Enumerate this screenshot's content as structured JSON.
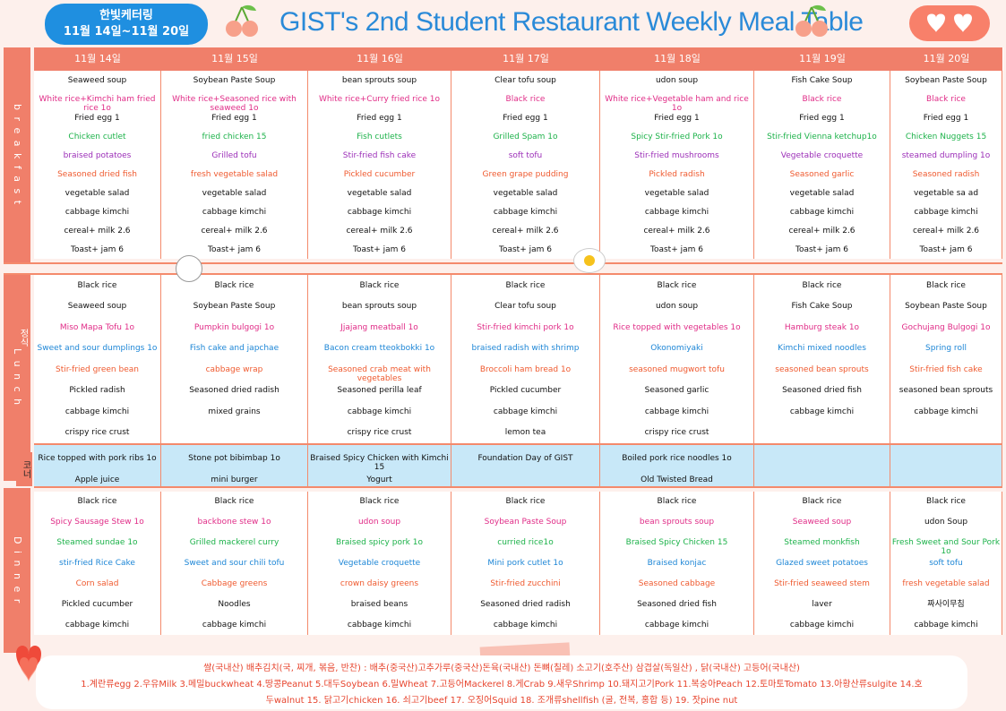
{
  "header": {
    "brand_line1": "한빛케터링",
    "brand_line2": "11월 14일~11월 20일",
    "title": "GIST's 2nd Student Restaurant Weekly Meal Table"
  },
  "days": [
    "11월 14일",
    "11월 15일",
    "11월 16일",
    "11월 17일",
    "11월 18일",
    "11월 19일",
    "11월 20일"
  ],
  "sections": {
    "breakfast": "b r e a k f a s t",
    "lunch": "L u n c h",
    "lunch_sub": "정식",
    "corner": "코너",
    "dinner": "D i n n e r"
  },
  "breakfast": [
    [
      {
        "t": "Seaweed soup",
        "c": "black"
      },
      {
        "t": "White rice+Kimchi ham fried rice 1o",
        "c": "pink"
      },
      {
        "t": "Fried egg 1",
        "c": "black"
      },
      {
        "t": "Chicken cutlet",
        "c": "green"
      },
      {
        "t": "braised potatoes",
        "c": "purple"
      },
      {
        "t": "Seasoned dried fish",
        "c": "orange"
      },
      {
        "t": "vegetable salad",
        "c": "black"
      },
      {
        "t": "cabbage kimchi",
        "c": "black"
      },
      {
        "t": "cereal+ milk 2.6",
        "c": "black"
      },
      {
        "t": "Toast+ jam 6",
        "c": "black"
      }
    ],
    [
      {
        "t": "Soybean Paste Soup",
        "c": "black"
      },
      {
        "t": "White rice+Seasoned rice with seaweed 1o",
        "c": "pink"
      },
      {
        "t": "Fried egg 1",
        "c": "black"
      },
      {
        "t": "fried chicken 15",
        "c": "green"
      },
      {
        "t": "Grilled tofu",
        "c": "purple"
      },
      {
        "t": "fresh vegetable salad",
        "c": "orange"
      },
      {
        "t": "vegetable salad",
        "c": "black"
      },
      {
        "t": "cabbage kimchi",
        "c": "black"
      },
      {
        "t": "cereal+ milk 2.6",
        "c": "black"
      },
      {
        "t": "Toast+ jam 6",
        "c": "black"
      }
    ],
    [
      {
        "t": "bean sprouts soup",
        "c": "black"
      },
      {
        "t": "White rice+Curry fried rice 1o",
        "c": "pink"
      },
      {
        "t": "Fried egg 1",
        "c": "black"
      },
      {
        "t": "Fish cutlets",
        "c": "green"
      },
      {
        "t": "Stir-fried fish cake",
        "c": "purple"
      },
      {
        "t": "Pickled cucumber",
        "c": "orange"
      },
      {
        "t": "vegetable salad",
        "c": "black"
      },
      {
        "t": "cabbage kimchi",
        "c": "black"
      },
      {
        "t": "cereal+ milk 2.6",
        "c": "black"
      },
      {
        "t": "Toast+ jam 6",
        "c": "black"
      }
    ],
    [
      {
        "t": "Clear tofu soup",
        "c": "black"
      },
      {
        "t": "Black rice",
        "c": "pink"
      },
      {
        "t": "Fried egg 1",
        "c": "black"
      },
      {
        "t": "Grilled Spam 1o",
        "c": "green"
      },
      {
        "t": "soft tofu",
        "c": "purple"
      },
      {
        "t": "Green grape pudding",
        "c": "orange"
      },
      {
        "t": "vegetable salad",
        "c": "black"
      },
      {
        "t": "cabbage kimchi",
        "c": "black"
      },
      {
        "t": "cereal+ milk 2.6",
        "c": "black"
      },
      {
        "t": "Toast+ jam 6",
        "c": "black"
      }
    ],
    [
      {
        "t": "udon soup",
        "c": "black"
      },
      {
        "t": "White rice+Vegetable ham and rice 1o",
        "c": "pink"
      },
      {
        "t": "Fried egg 1",
        "c": "black"
      },
      {
        "t": "Spicy Stir-fried Pork 1o",
        "c": "green"
      },
      {
        "t": "Stir-fried mushrooms",
        "c": "purple"
      },
      {
        "t": "Pickled radish",
        "c": "orange"
      },
      {
        "t": "vegetable salad",
        "c": "black"
      },
      {
        "t": "cabbage kimchi",
        "c": "black"
      },
      {
        "t": "cereal+ milk 2.6",
        "c": "black"
      },
      {
        "t": "Toast+ jam 6",
        "c": "black"
      }
    ],
    [
      {
        "t": "Fish Cake Soup",
        "c": "black"
      },
      {
        "t": "Black rice",
        "c": "pink"
      },
      {
        "t": "Fried egg 1",
        "c": "black"
      },
      {
        "t": "Stir-fried Vienna ketchup1o",
        "c": "green"
      },
      {
        "t": "Vegetable croquette",
        "c": "purple"
      },
      {
        "t": "Seasoned garlic",
        "c": "orange"
      },
      {
        "t": "vegetable salad",
        "c": "black"
      },
      {
        "t": "cabbage kimchi",
        "c": "black"
      },
      {
        "t": "cereal+ milk 2.6",
        "c": "black"
      },
      {
        "t": "Toast+ jam 6",
        "c": "black"
      }
    ],
    [
      {
        "t": "Soybean Paste Soup",
        "c": "black"
      },
      {
        "t": "Black rice",
        "c": "pink"
      },
      {
        "t": "Fried egg 1",
        "c": "black"
      },
      {
        "t": "Chicken Nuggets 15",
        "c": "green"
      },
      {
        "t": "steamed dumpling 1o",
        "c": "purple"
      },
      {
        "t": "Seasoned radish",
        "c": "orange"
      },
      {
        "t": "vegetable sa ad",
        "c": "black"
      },
      {
        "t": "cabbage kimchi",
        "c": "black"
      },
      {
        "t": "cereal+ milk 2.6",
        "c": "black"
      },
      {
        "t": "Toast+ jam 6",
        "c": "black"
      }
    ]
  ],
  "lunch": [
    [
      {
        "t": "Black rice",
        "c": "black"
      },
      {
        "t": "Seaweed soup",
        "c": "black"
      },
      {
        "t": "Miso Mapa Tofu 1o",
        "c": "pink"
      },
      {
        "t": "Sweet and sour dumplings  1o",
        "c": "blue"
      },
      {
        "t": "Stir-fried green bean",
        "c": "orange"
      },
      {
        "t": "Pickled radish",
        "c": "black"
      },
      {
        "t": "cabbage kimchi",
        "c": "black"
      },
      {
        "t": "crispy rice crust",
        "c": "black"
      }
    ],
    [
      {
        "t": "Black rice",
        "c": "black"
      },
      {
        "t": "Soybean Paste Soup",
        "c": "black"
      },
      {
        "t": "Pumpkin bulgogi 1o",
        "c": "pink"
      },
      {
        "t": "Fish cake and japchae",
        "c": "blue"
      },
      {
        "t": "cabbage wrap",
        "c": "orange"
      },
      {
        "t": "Seasoned dried radish",
        "c": "black"
      },
      {
        "t": "mixed grains",
        "c": "black"
      },
      {
        "t": "",
        "c": "black"
      }
    ],
    [
      {
        "t": "Black rice",
        "c": "black"
      },
      {
        "t": "bean sprouts soup",
        "c": "black"
      },
      {
        "t": "Jjajang meatball 1o",
        "c": "pink"
      },
      {
        "t": "Bacon cream tteokbokki 1o",
        "c": "blue"
      },
      {
        "t": "Seasoned crab meat with vegetables",
        "c": "orange"
      },
      {
        "t": "Seasoned perilla leaf",
        "c": "black"
      },
      {
        "t": "cabbage kimchi",
        "c": "black"
      },
      {
        "t": "crispy rice crust",
        "c": "black"
      }
    ],
    [
      {
        "t": "Black rice",
        "c": "black"
      },
      {
        "t": "Clear tofu soup",
        "c": "black"
      },
      {
        "t": "Stir-fried kimchi pork 1o",
        "c": "pink"
      },
      {
        "t": "braised radish with shrimp",
        "c": "blue"
      },
      {
        "t": "Broccoli ham bread 1o",
        "c": "orange"
      },
      {
        "t": "Pickled cucumber",
        "c": "black"
      },
      {
        "t": "cabbage kimchi",
        "c": "black"
      },
      {
        "t": "lemon tea",
        "c": "black"
      }
    ],
    [
      {
        "t": "Black rice",
        "c": "black"
      },
      {
        "t": "udon soup",
        "c": "black"
      },
      {
        "t": "Rice topped with vegetables 1o",
        "c": "pink"
      },
      {
        "t": "Okonomiyaki",
        "c": "blue"
      },
      {
        "t": "seasoned mugwort tofu",
        "c": "orange"
      },
      {
        "t": "Seasoned garlic",
        "c": "black"
      },
      {
        "t": "cabbage kimchi",
        "c": "black"
      },
      {
        "t": "crispy rice crust",
        "c": "black"
      }
    ],
    [
      {
        "t": "Black rice",
        "c": "black"
      },
      {
        "t": "Fish Cake Soup",
        "c": "black"
      },
      {
        "t": "Hamburg steak 1o",
        "c": "pink"
      },
      {
        "t": "Kimchi mixed noodles",
        "c": "blue"
      },
      {
        "t": "seasoned bean sprouts",
        "c": "orange"
      },
      {
        "t": "Seasoned dried fish",
        "c": "black"
      },
      {
        "t": "cabbage kimchi",
        "c": "black"
      },
      {
        "t": "",
        "c": "black"
      }
    ],
    [
      {
        "t": "Black rice",
        "c": "black"
      },
      {
        "t": "Soybean Paste Soup",
        "c": "black"
      },
      {
        "t": "Gochujang Bulgogi 1o",
        "c": "pink"
      },
      {
        "t": "Spring roll",
        "c": "blue"
      },
      {
        "t": "Stir-fried fish cake",
        "c": "orange"
      },
      {
        "t": "seasoned bean sprouts",
        "c": "black"
      },
      {
        "t": "cabbage kimchi",
        "c": "black"
      },
      {
        "t": "",
        "c": "black"
      }
    ]
  ],
  "corner": [
    [
      "Rice topped with pork ribs 1o",
      "Apple juice"
    ],
    [
      "Stone pot bibimbap 1o",
      "mini burger"
    ],
    [
      "Braised Spicy Chicken with Kimchi 15",
      "Yogurt"
    ],
    [
      "Foundation Day of GIST",
      ""
    ],
    [
      "Boiled pork rice noodles 1o",
      "Old Twisted Bread"
    ],
    [
      "",
      ""
    ],
    [
      "",
      ""
    ]
  ],
  "dinner": [
    [
      {
        "t": "Black rice",
        "c": "black"
      },
      {
        "t": "Spicy Sausage Stew 1o",
        "c": "pink"
      },
      {
        "t": "Steamed sundae 1o",
        "c": "green"
      },
      {
        "t": "stir-fried Rice Cake",
        "c": "blue"
      },
      {
        "t": "Corn salad",
        "c": "orange"
      },
      {
        "t": "Pickled cucumber",
        "c": "black"
      },
      {
        "t": "cabbage kimchi",
        "c": "black"
      }
    ],
    [
      {
        "t": "Black rice",
        "c": "black"
      },
      {
        "t": "backbone stew 1o",
        "c": "pink"
      },
      {
        "t": "Grilled mackerel curry",
        "c": "green"
      },
      {
        "t": "Sweet and sour chili tofu",
        "c": "blue"
      },
      {
        "t": "Cabbage greens",
        "c": "orange"
      },
      {
        "t": "Noodles",
        "c": "black"
      },
      {
        "t": "cabbage kimchi",
        "c": "black"
      }
    ],
    [
      {
        "t": "Black rice",
        "c": "black"
      },
      {
        "t": "udon soup",
        "c": "pink"
      },
      {
        "t": "Braised spicy pork 1o",
        "c": "green"
      },
      {
        "t": "Vegetable croquette",
        "c": "blue"
      },
      {
        "t": "crown daisy  greens",
        "c": "orange"
      },
      {
        "t": "braised beans",
        "c": "black"
      },
      {
        "t": "cabbage kimchi",
        "c": "black"
      }
    ],
    [
      {
        "t": "Black rice",
        "c": "black"
      },
      {
        "t": "Soybean Paste Soup",
        "c": "pink"
      },
      {
        "t": "curried rice1o",
        "c": "green"
      },
      {
        "t": "Mini pork cutlet 1o",
        "c": "blue"
      },
      {
        "t": "Stir-fried zucchini",
        "c": "orange"
      },
      {
        "t": "Seasoned dried radish",
        "c": "black"
      },
      {
        "t": "cabbage kimchi",
        "c": "black"
      }
    ],
    [
      {
        "t": "Black rice",
        "c": "black"
      },
      {
        "t": "bean sprouts soup",
        "c": "pink"
      },
      {
        "t": "Braised Spicy Chicken 15",
        "c": "green"
      },
      {
        "t": "Braised konjac",
        "c": "blue"
      },
      {
        "t": "Seasoned cabbage",
        "c": "orange"
      },
      {
        "t": "Seasoned dried fish",
        "c": "black"
      },
      {
        "t": "cabbage kimchi",
        "c": "black"
      }
    ],
    [
      {
        "t": "Black rice",
        "c": "black"
      },
      {
        "t": "Seaweed soup",
        "c": "pink"
      },
      {
        "t": "Steamed monkfish",
        "c": "green"
      },
      {
        "t": "Glazed sweet potatoes",
        "c": "blue"
      },
      {
        "t": "Stir-fried seaweed stem",
        "c": "orange"
      },
      {
        "t": "laver",
        "c": "black"
      },
      {
        "t": "cabbage kimchi",
        "c": "black"
      }
    ],
    [
      {
        "t": "Black rice",
        "c": "black"
      },
      {
        "t": "udon Soup",
        "c": "black"
      },
      {
        "t": "Fresh Sweet and Sour Pork 1o",
        "c": "green"
      },
      {
        "t": "soft tofu",
        "c": "blue"
      },
      {
        "t": "fresh vegetable salad",
        "c": "orange"
      },
      {
        "t": "짜사이무침",
        "c": "black"
      },
      {
        "t": "cabbage kimchi",
        "c": "black"
      }
    ]
  ],
  "footer": {
    "line1": "쌀(국내산) 배추김치(국, 찌개, 볶음, 반찬) : 배추(중국산)고추가루(중국산)돈육(국내산) 돈뼈(칠레) 소고기(호주산) 삼겹살(독일산) , 닭(국내산) 고등어(국내산)",
    "line2": "1.계란류egg 2.우유Milk 3.메밀buckwheat 4.땅콩Peanut 5.대두Soybean 6.밀Wheat 7.고등어Mackerel 8.게Crab 9.새우Shrimp 10.돼지고기Pork 11.복숭아Peach 12.토마토Tomato 13.아황산류sulgite 14.호",
    "line3": "두walnut 15. 닭고기chicken 16. 쇠고기beef 17. 오징어Squid 18. 조개류shellfish (굴, 전복, 홍합 등) 19. 잣pine nut"
  },
  "colors": {
    "accent": "#f07f6a",
    "brand": "#1f8fe0",
    "corner_bg": "#c8e8f8"
  }
}
